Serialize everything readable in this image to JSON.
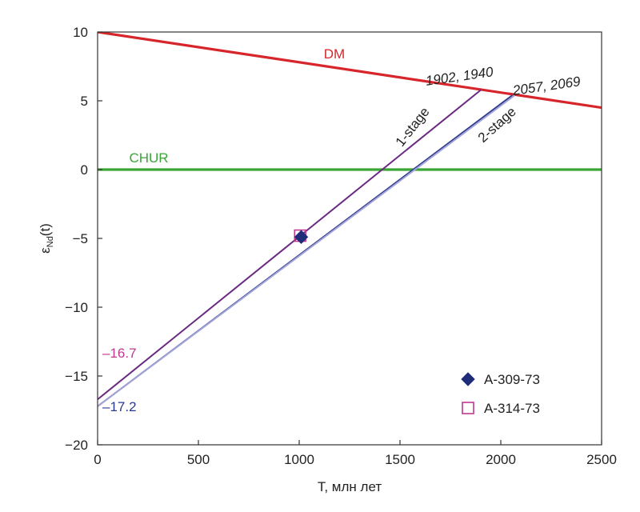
{
  "chart_data": {
    "type": "line",
    "xlabel": "T, млн лет",
    "ylabel_main": "ε",
    "ylabel_sub": "Nd",
    "ylabel_tail": "(t)",
    "xlim": [
      0,
      2500
    ],
    "ylim": [
      -20,
      10
    ],
    "xticks": [
      0,
      500,
      1000,
      1500,
      2000,
      2500
    ],
    "yticks": [
      -20,
      -15,
      -10,
      -5,
      0,
      5,
      10
    ],
    "grid": false,
    "legend_position": "bottom-right",
    "reference_lines": [
      {
        "label": "DM",
        "color": "#d6252b",
        "x": [
          0,
          2500
        ],
        "y": [
          10,
          4.5
        ]
      },
      {
        "label": "CHUR",
        "color": "#3aa635",
        "x": [
          0,
          2500
        ],
        "y": [
          0,
          0
        ]
      }
    ],
    "evolution_lines": [
      {
        "color": "#6a2a82",
        "x": [
          0,
          1902
        ],
        "y": [
          -16.7,
          5.8
        ]
      },
      {
        "color": "#2b3a8c",
        "x": [
          0,
          2057
        ],
        "y": [
          -17.2,
          5.4
        ]
      },
      {
        "color": "#a4a4d8",
        "x": [
          0,
          2069
        ],
        "y": [
          -17.2,
          5.4
        ]
      }
    ],
    "points": [
      {
        "label": "A-309-73",
        "marker": "diamond",
        "color": "#1f2c7a",
        "x": 1010,
        "y": -4.9
      },
      {
        "label": "A-314-73",
        "marker": "square-open",
        "color": "#c0398f",
        "x": 1005,
        "y": -4.8
      }
    ],
    "annotations": [
      {
        "text": "DM",
        "color": "#d6252b"
      },
      {
        "text": "CHUR",
        "color": "#3aa635"
      },
      {
        "text": "1902, 1940",
        "color": "#222222"
      },
      {
        "text": "2057, 2069",
        "color": "#222222"
      },
      {
        "text": "1-stage",
        "color": "#222222"
      },
      {
        "text": "2-stage",
        "color": "#222222"
      },
      {
        "text": "–16.7",
        "color": "#c0398f"
      },
      {
        "text": "–17.2",
        "color": "#2b3a8c"
      }
    ]
  }
}
